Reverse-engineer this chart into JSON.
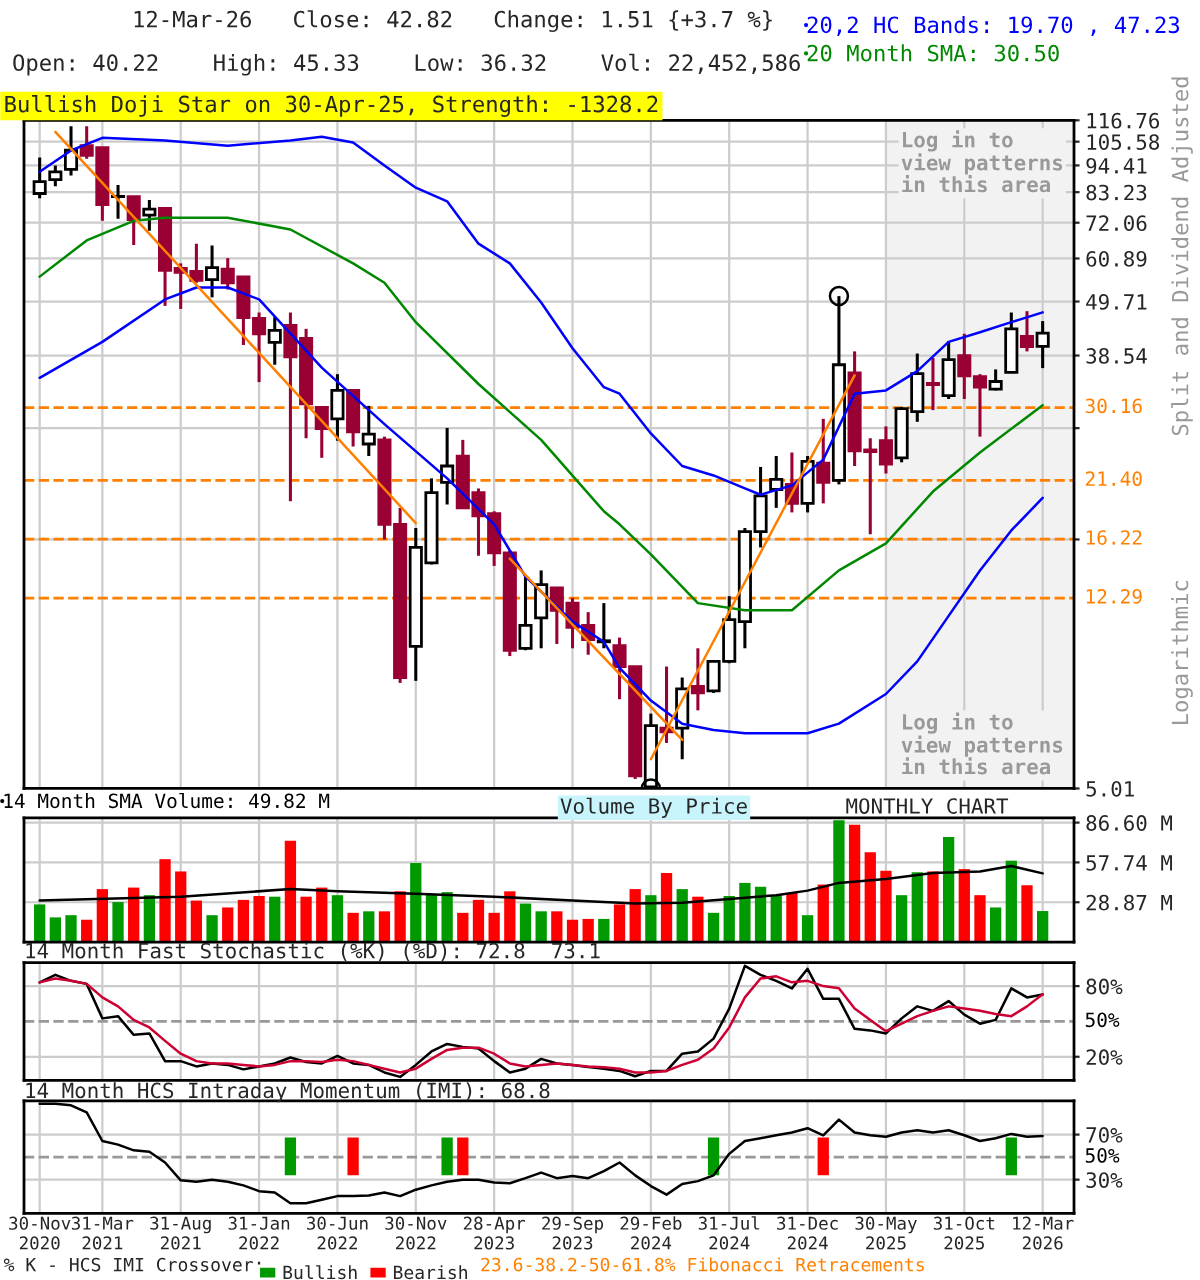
{
  "chart_data": [
    {
      "type": "candlestick",
      "title": "12-Mar-26   Close: 42.82   Change: 1.51 {+3.7 %}",
      "subtitle": "Open: 40.22    High: 45.33    Low: 36.32    Vol: 22,452,586",
      "x": [
        "2020-11",
        "2020-12",
        "2021-01",
        "2021-02",
        "2021-03",
        "2021-04",
        "2021-05",
        "2021-06",
        "2021-07",
        "2021-08",
        "2021-09",
        "2021-10",
        "2021-11",
        "2021-12",
        "2022-01",
        "2022-02",
        "2022-03",
        "2022-04",
        "2022-05",
        "2022-06",
        "2022-07",
        "2022-08",
        "2022-09",
        "2022-10",
        "2022-11",
        "2022-12",
        "2023-01",
        "2023-02",
        "2023-03",
        "2023-04",
        "2023-05",
        "2023-06",
        "2023-07",
        "2023-08",
        "2023-09",
        "2023-10",
        "2023-11",
        "2023-12",
        "2024-01",
        "2024-02",
        "2024-03",
        "2024-04",
        "2024-05",
        "2024-06",
        "2024-07",
        "2024-08",
        "2024-09",
        "2024-10",
        "2024-11",
        "2024-12",
        "2025-01",
        "2025-02",
        "2025-03",
        "2025-04",
        "2025-05",
        "2025-06",
        "2025-07",
        "2025-08",
        "2025-09",
        "2025-10",
        "2025-11",
        "2025-12",
        "2026-01",
        "2026-02",
        "2026-03"
      ],
      "ohlc": [
        [
          82.7,
          98.0,
          80.9,
          87.5
        ],
        [
          88.3,
          94.4,
          85.6,
          91.6
        ],
        [
          92.7,
          113.6,
          90.0,
          101.4
        ],
        [
          103.6,
          113.6,
          97.4,
          99.0
        ],
        [
          102.6,
          102.6,
          72.7,
          78.5
        ],
        [
          81.5,
          86.1,
          73.4,
          81.6
        ],
        [
          81.5,
          81.5,
          64.9,
          73.1
        ],
        [
          74.7,
          80.2,
          69.4,
          76.8
        ],
        [
          77.1,
          77.5,
          48.7,
          57.6
        ],
        [
          58.1,
          59.5,
          48.0,
          57.0
        ],
        [
          57.3,
          65.3,
          54.3,
          54.9
        ],
        [
          55.1,
          64.7,
          50.7,
          58.3
        ],
        [
          57.9,
          61.0,
          52.6,
          54.3
        ],
        [
          55.8,
          55.8,
          40.5,
          46.1
        ],
        [
          45.9,
          47.2,
          34.0,
          42.7
        ],
        [
          41.0,
          46.2,
          36.9,
          43.4
        ],
        [
          44.4,
          47.2,
          19.4,
          38.3
        ],
        [
          41.8,
          43.7,
          26.1,
          30.7
        ],
        [
          30.2,
          30.2,
          23.8,
          27.3
        ],
        [
          28.6,
          35.3,
          25.8,
          32.7
        ],
        [
          32.7,
          32.7,
          25.1,
          26.9
        ],
        [
          25.4,
          30.4,
          24.0,
          26.6
        ],
        [
          25.9,
          26.3,
          16.2,
          17.4
        ],
        [
          17.4,
          18.8,
          8.24,
          8.45
        ],
        [
          9.79,
          17.1,
          8.32,
          15.6
        ],
        [
          14.5,
          21.6,
          14.4,
          20.2
        ],
        [
          21.2,
          27.4,
          19.1,
          22.9
        ],
        [
          24.0,
          25.9,
          18.8,
          18.8
        ],
        [
          20.2,
          20.6,
          15.0,
          18.1
        ],
        [
          18.3,
          18.5,
          14.3,
          15.2
        ],
        [
          15.2,
          15.4,
          9.35,
          9.61
        ],
        [
          9.7,
          13.6,
          9.61,
          10.8
        ],
        [
          11.2,
          14.0,
          9.7,
          13.1
        ],
        [
          12.9,
          12.9,
          9.9,
          11.6
        ],
        [
          12.0,
          12.3,
          9.7,
          10.7
        ],
        [
          10.8,
          11.5,
          9.41,
          10.1
        ],
        [
          10.0,
          12.0,
          9.7,
          10.05
        ],
        [
          9.82,
          10.2,
          7.63,
          8.9
        ],
        [
          8.9,
          8.9,
          5.24,
          5.32
        ],
        [
          5.05,
          7.13,
          5.01,
          6.74
        ],
        [
          6.66,
          8.9,
          6.21,
          6.54
        ],
        [
          6.66,
          8.45,
          5.75,
          8.01
        ],
        [
          8.11,
          9.7,
          7.24,
          7.86
        ],
        [
          7.94,
          9.17,
          7.86,
          9.12
        ],
        [
          9.12,
          12.4,
          9.04,
          11.1
        ],
        [
          11.0,
          17.1,
          9.7,
          16.8
        ],
        [
          16.8,
          22.8,
          15.6,
          19.9
        ],
        [
          20.5,
          24.0,
          18.8,
          21.5
        ],
        [
          21.0,
          24.4,
          18.4,
          19.2
        ],
        [
          19.2,
          24.0,
          18.4,
          23.4
        ],
        [
          23.2,
          28.6,
          19.2,
          21.2
        ],
        [
          21.4,
          51.0,
          21.0,
          36.9
        ],
        [
          35.5,
          39.3,
          22.9,
          24.6
        ],
        [
          24.7,
          26.1,
          16.6,
          24.5
        ],
        [
          25.8,
          27.6,
          22.1,
          23.1
        ],
        [
          23.8,
          30.2,
          23.3,
          30.0
        ],
        [
          29.6,
          38.9,
          28.2,
          35.4
        ],
        [
          33.8,
          38.1,
          29.8,
          33.6
        ],
        [
          31.9,
          41.2,
          31.4,
          37.8
        ],
        [
          38.5,
          42.7,
          31.4,
          35.0
        ],
        [
          34.9,
          35.3,
          26.3,
          33.2
        ],
        [
          32.9,
          36.1,
          32.7,
          34.1
        ],
        [
          35.6,
          47.2,
          35.5,
          43.7
        ],
        [
          42.2,
          47.5,
          39.3,
          40.2
        ],
        [
          40.22,
          45.33,
          36.32,
          42.82
        ]
      ],
      "colors": [
        "#ffffff",
        "#ffffff",
        "#ffffff",
        "#990033",
        "#990033",
        "#ffffff",
        "#990033",
        "#ffffff",
        "#990033",
        "#990033",
        "#990033",
        "#ffffff",
        "#990033",
        "#990033",
        "#990033",
        "#ffffff",
        "#990033",
        "#990033",
        "#990033",
        "#ffffff",
        "#990033",
        "#ffffff",
        "#990033",
        "#990033",
        "#ffffff",
        "#ffffff",
        "#ffffff",
        "#990033",
        "#990033",
        "#990033",
        "#990033",
        "#ffffff",
        "#ffffff",
        "#990033",
        "#990033",
        "#990033",
        "#ffffff",
        "#990033",
        "#990033",
        "#ffffff",
        "#990033",
        "#ffffff",
        "#990033",
        "#ffffff",
        "#ffffff",
        "#ffffff",
        "#ffffff",
        "#ffffff",
        "#990033",
        "#ffffff",
        "#990033",
        "#ffffff",
        "#990033",
        "#990033",
        "#990033",
        "#ffffff",
        "#ffffff",
        "#990033",
        "#ffffff",
        "#990033",
        "#990033",
        "#ffffff",
        "#ffffff",
        "#990033",
        "#ffffff"
      ],
      "series": [
        {
          "type": "line",
          "name": "20,2 HC Bands: 19.70 , 47.23",
          "color": "#0000ff",
          "x": [
            "2020-11",
            "2021-01",
            "2021-03",
            "2021-07",
            "2021-11",
            "2022-03",
            "2022-05",
            "2022-07",
            "2022-09",
            "2022-11",
            "2023-01",
            "2023-03",
            "2023-05",
            "2023-07",
            "2023-09",
            "2023-11",
            "2023-12",
            "2024-02",
            "2024-04",
            "2024-06",
            "2024-08",
            "2024-09",
            "2024-11",
            "2025-01",
            "2025-03",
            "2025-05",
            "2025-07",
            "2025-09",
            "2025-11",
            "2026-01",
            "2026-03"
          ],
          "values": [
            91.6,
            101.3,
            107.5,
            106.2,
            103.6,
            106.2,
            108.1,
            105.2,
            94.4,
            85.0,
            79.7,
            65.3,
            59.5,
            49.5,
            39.9,
            33.2,
            32.2,
            26.7,
            22.9,
            21.9,
            20.6,
            20.0,
            20.9,
            23.6,
            32.2,
            32.7,
            35.8,
            41.1,
            43.0,
            45.1,
            47.23
          ]
        },
        {
          "type": "line",
          "color": "#0000ff",
          "x": [
            "2020-11",
            "2021-03",
            "2021-07",
            "2021-09",
            "2021-11",
            "2022-01",
            "2022-05",
            "2022-09",
            "2023-01",
            "2023-04",
            "2023-06",
            "2023-09",
            "2023-11",
            "2023-12",
            "2024-02",
            "2024-04",
            "2024-06",
            "2024-08",
            "2024-12",
            "2025-02",
            "2025-05",
            "2025-07",
            "2025-09",
            "2025-11",
            "2026-01",
            "2026-03"
          ],
          "values": [
            34.7,
            41.1,
            50.2,
            53.1,
            53.1,
            50.2,
            36.4,
            27.9,
            21.6,
            17.4,
            13.6,
            11.0,
            10.0,
            8.84,
            7.58,
            6.8,
            6.6,
            6.5,
            6.5,
            6.8,
            7.82,
            9.12,
            11.3,
            14.0,
            16.9,
            19.7
          ]
        },
        {
          "type": "line",
          "name": "20 Month SMA: 30.50",
          "color": "#008800",
          "x": [
            "2020-11",
            "2021-02",
            "2021-05",
            "2021-07",
            "2021-11",
            "2022-03",
            "2022-07",
            "2022-09",
            "2022-11",
            "2023-03",
            "2023-07",
            "2023-11",
            "2023-12",
            "2024-02",
            "2024-05",
            "2024-08",
            "2024-11",
            "2025-02",
            "2025-05",
            "2025-08",
            "2025-11",
            "2026-03"
          ],
          "values": [
            55.9,
            66.3,
            72.7,
            73.8,
            73.8,
            69.8,
            59.5,
            54.3,
            45.1,
            33.7,
            25.9,
            18.5,
            17.4,
            15.1,
            12.0,
            11.6,
            11.6,
            14.0,
            15.9,
            20.3,
            24.4,
            30.5
          ]
        },
        {
          "type": "line",
          "color": "#ff8000",
          "x": [
            "2020-12",
            "2022-11"
          ],
          "values": [
            110.6,
            17.5
          ]
        },
        {
          "type": "line",
          "color": "#ff8000",
          "x": [
            "2023-05",
            "2024-04"
          ],
          "values": [
            14.8,
            6.3
          ]
        },
        {
          "type": "line",
          "color": "#ff8000",
          "x": [
            "2024-02",
            "2025-03"
          ],
          "values": [
            5.75,
            35.1
          ]
        },
        {
          "type": "scatter",
          "color": "#000000",
          "marker": "circle",
          "x": [
            "2024-02",
            "2025-02"
          ],
          "values": [
            5.01,
            51.0
          ]
        }
      ],
      "log": true,
      "ylim": [
        5.01,
        116.76
      ],
      "yticks": [
        116.76,
        105.58,
        94.41,
        83.23,
        72.06,
        60.89,
        49.71,
        38.54,
        {
          "value": 27.37,
          "label": null
        },
        {
          "value": 16.2,
          "label": null
        },
        5.01
      ],
      "xlim": [
        "2020-10",
        "2026-05"
      ],
      "xticks": [
        {
          "value": "2020-11",
          "label": null
        },
        {
          "value": "2021-03",
          "label": null
        },
        {
          "value": "2021-08",
          "label": null
        },
        {
          "value": "2022-01",
          "label": null
        },
        {
          "value": "2022-06",
          "label": null
        },
        {
          "value": "2022-11",
          "label": null
        },
        {
          "value": "2023-04",
          "label": null
        },
        {
          "value": "2023-09",
          "label": null
        },
        {
          "value": "2024-02",
          "label": null
        },
        {
          "value": "2024-07",
          "label": null
        },
        {
          "value": "2024-12",
          "label": null
        },
        {
          "value": "2025-05",
          "label": null
        },
        {
          "value": "2025-10",
          "label": null
        },
        {
          "value": "2026-03",
          "label": null
        }
      ],
      "tick_labels": "y",
      "grid": true,
      "legend": "top right",
      "ref_lines": [
        {
          "axis": "y",
          "value": 30.16,
          "label": "30.16",
          "color": "#ff8000",
          "line_style": "dashed"
        },
        {
          "axis": "y",
          "value": 21.4,
          "label": "21.40",
          "color": "#ff8000",
          "line_style": "dashed"
        },
        {
          "axis": "y",
          "value": 16.22,
          "label": "16.22",
          "color": "#ff8000",
          "line_style": "dashed"
        },
        {
          "axis": "y",
          "value": 12.29,
          "label": "12.29",
          "color": "#ff8000",
          "line_style": "dashed"
        }
      ],
      "bands": [
        {
          "axis": "x",
          "from": "2025-05",
          "to": "2026-05",
          "color": "#f2f2f2"
        }
      ],
      "annotations": [
        "Bullish Doji Star on 30-Apr-25, Strength: -1328.2",
        "Log in to\nview patterns\nin this area",
        "Log in to\nview patterns\nin this area",
        "Split and Dividend Adjusted",
        "Logarithmic",
        "23.6-38.2-50-61.8% Fibonacci Retracements"
      ]
    },
    {
      "type": "bar",
      "x": [
        "2020-11",
        "2020-12",
        "2021-01",
        "2021-02",
        "2021-03",
        "2021-04",
        "2021-05",
        "2021-06",
        "2021-07",
        "2021-08",
        "2021-09",
        "2021-10",
        "2021-11",
        "2021-12",
        "2022-01",
        "2022-02",
        "2022-03",
        "2022-04",
        "2022-05",
        "2022-06",
        "2022-07",
        "2022-08",
        "2022-09",
        "2022-10",
        "2022-11",
        "2022-12",
        "2023-01",
        "2023-02",
        "2023-03",
        "2023-04",
        "2023-05",
        "2023-06",
        "2023-07",
        "2023-08",
        "2023-09",
        "2023-10",
        "2023-11",
        "2023-12",
        "2024-01",
        "2024-02",
        "2024-03",
        "2024-04",
        "2024-05",
        "2024-06",
        "2024-07",
        "2024-08",
        "2024-09",
        "2024-10",
        "2024-11",
        "2024-12",
        "2025-01",
        "2025-02",
        "2025-03",
        "2025-04",
        "2025-05",
        "2025-06",
        "2025-07",
        "2025-08",
        "2025-09",
        "2025-10",
        "2025-11",
        "2025-12",
        "2026-01",
        "2026-02",
        "2026-03"
      ],
      "series": [
        {
          "type": "bar",
          "values": [
            27.3,
            17.9,
            19.5,
            16.2,
            38.4,
            29.0,
            39.5,
            34.0,
            60.1,
            51.2,
            30.1,
            19.5,
            25.1,
            30.6,
            33.4,
            32.9,
            73.4,
            32.9,
            39.5,
            34.0,
            21.2,
            22.3,
            22.3,
            36.8,
            57.3,
            34.5,
            36.2,
            21.2,
            30.6,
            21.2,
            36.8,
            27.9,
            22.3,
            22.3,
            16.2,
            16.8,
            16.8,
            27.3,
            38.4,
            34.0,
            50.1,
            38.4,
            32.9,
            21.2,
            33.4,
            42.9,
            40.1,
            34.0,
            35.6,
            19.5,
            41.7,
            88.4,
            85.1,
            65.1,
            51.7,
            34.0,
            50.6,
            51.2,
            76.2,
            52.9,
            34.0,
            25.1,
            59.0,
            41.2,
            22.5
          ],
          "colors": [
            "#009900",
            "#009900",
            "#009900",
            "#ff0000",
            "#ff0000",
            "#009900",
            "#ff0000",
            "#009900",
            "#ff0000",
            "#ff0000",
            "#ff0000",
            "#009900",
            "#ff0000",
            "#ff0000",
            "#ff0000",
            "#009900",
            "#ff0000",
            "#ff0000",
            "#ff0000",
            "#009900",
            "#ff0000",
            "#009900",
            "#ff0000",
            "#ff0000",
            "#009900",
            "#009900",
            "#009900",
            "#ff0000",
            "#ff0000",
            "#ff0000",
            "#ff0000",
            "#009900",
            "#009900",
            "#ff0000",
            "#ff0000",
            "#ff0000",
            "#009900",
            "#ff0000",
            "#ff0000",
            "#009900",
            "#ff0000",
            "#009900",
            "#ff0000",
            "#009900",
            "#009900",
            "#009900",
            "#009900",
            "#009900",
            "#ff0000",
            "#009900",
            "#ff0000",
            "#009900",
            "#ff0000",
            "#ff0000",
            "#ff0000",
            "#009900",
            "#009900",
            "#ff0000",
            "#009900",
            "#ff0000",
            "#ff0000",
            "#009900",
            "#009900",
            "#ff0000",
            "#009900"
          ]
        },
        {
          "type": "line",
          "name": "14 Month SMA Volume: 49.82 M",
          "color": "#000000",
          "x": [
            "2020-11",
            "2021-08",
            "2022-03",
            "2022-06",
            "2022-11",
            "2023-04",
            "2023-09",
            "2024-01",
            "2024-04",
            "2024-10",
            "2024-12",
            "2025-02",
            "2025-05",
            "2025-08",
            "2025-11",
            "2026-01",
            "2026-03"
          ],
          "values": [
            30.1,
            32.9,
            38.4,
            36.8,
            35.1,
            32.9,
            30.1,
            27.9,
            28.5,
            34.0,
            37.3,
            42.9,
            45.8,
            50.1,
            51.2,
            55.1,
            49.82
          ]
        }
      ],
      "ylim": [
        0,
        90
      ],
      "yticks": [
        {
          "value": 28.87,
          "label": "28.87 M"
        },
        {
          "value": 57.74,
          "label": "57.74 M"
        },
        {
          "value": 86.6,
          "label": "86.60 M"
        }
      ],
      "xlim": [
        "2020-10",
        "2026-05"
      ],
      "xticks": [
        {
          "value": "2020-11",
          "label": null
        },
        {
          "value": "2021-03",
          "label": null
        },
        {
          "value": "2021-08",
          "label": null
        },
        {
          "value": "2022-01",
          "label": null
        },
        {
          "value": "2022-06",
          "label": null
        },
        {
          "value": "2022-11",
          "label": null
        },
        {
          "value": "2023-04",
          "label": null
        },
        {
          "value": "2023-09",
          "label": null
        },
        {
          "value": "2024-02",
          "label": null
        },
        {
          "value": "2024-07",
          "label": null
        },
        {
          "value": "2024-12",
          "label": null
        },
        {
          "value": "2025-05",
          "label": null
        },
        {
          "value": "2025-10",
          "label": null
        },
        {
          "value": "2026-03",
          "label": null
        }
      ],
      "tick_labels": "y",
      "grid": true,
      "legend": "top left",
      "annotations": [
        "Volume By Price",
        "MONTHLY CHART"
      ]
    },
    {
      "type": "line",
      "title": "14 Month Fast Stochastic (%K) (%D): 72.8  73.1",
      "x": [
        "2020-11",
        "2020-12",
        "2021-01",
        "2021-02",
        "2021-03",
        "2021-04",
        "2021-05",
        "2021-06",
        "2021-07",
        "2021-08",
        "2021-09",
        "2021-10",
        "2021-11",
        "2021-12",
        "2022-01",
        "2022-02",
        "2022-03",
        "2022-04",
        "2022-05",
        "2022-06",
        "2022-07",
        "2022-08",
        "2022-09",
        "2022-10",
        "2022-11",
        "2022-12",
        "2023-01",
        "2023-02",
        "2023-03",
        "2023-04",
        "2023-05",
        "2023-06",
        "2023-07",
        "2023-08",
        "2023-09",
        "2023-10",
        "2023-11",
        "2023-12",
        "2024-01",
        "2024-02",
        "2024-03",
        "2024-04",
        "2024-05",
        "2024-06",
        "2024-07",
        "2024-08",
        "2024-09",
        "2024-10",
        "2024-11",
        "2024-12",
        "2025-01",
        "2025-02",
        "2025-03",
        "2025-04",
        "2025-05",
        "2025-06",
        "2025-07",
        "2025-08",
        "2025-09",
        "2025-10",
        "2025-11",
        "2025-12",
        "2026-01",
        "2026-02",
        "2026-03"
      ],
      "series": [
        {
          "type": "line",
          "color": "#000000",
          "values": [
            83.2,
            89.6,
            84.5,
            81.9,
            52.6,
            54.5,
            38.6,
            39.8,
            16.3,
            16.3,
            11.8,
            14.3,
            13.1,
            9.3,
            11.8,
            14.3,
            19.4,
            15.6,
            14.3,
            20.7,
            14.3,
            13.1,
            6.7,
            2.9,
            13.1,
            24.5,
            30.9,
            28.4,
            27.1,
            16.3,
            6.7,
            9.9,
            18.2,
            14.3,
            13.1,
            11.2,
            9.9,
            8.0,
            3.5,
            8.0,
            8.0,
            22.6,
            24.5,
            35.4,
            60.9,
            97.2,
            89.6,
            84.5,
            78.1,
            94.7,
            69.2,
            69.2,
            43.7,
            42.4,
            39.8,
            52.6,
            62.8,
            59.0,
            67.3,
            55.8,
            48.1,
            51.3,
            78.1,
            70.4,
            72.8
          ]
        },
        {
          "type": "line",
          "color": "#cc0033",
          "values": [
            83.2,
            86.4,
            84.5,
            81.9,
            70.4,
            62.8,
            51.3,
            44.9,
            33.5,
            22.6,
            16.3,
            14.3,
            14.3,
            13.1,
            11.8,
            13.1,
            16.3,
            16.3,
            15.6,
            17.5,
            16.3,
            13.1,
            9.9,
            6.7,
            9.9,
            18.2,
            25.8,
            27.7,
            27.7,
            22.6,
            14.3,
            11.8,
            13.1,
            14.3,
            13.1,
            11.8,
            11.2,
            9.9,
            6.7,
            6.7,
            8.0,
            13.1,
            17.5,
            27.1,
            44.9,
            70.4,
            86.4,
            88.3,
            83.2,
            84.5,
            80.0,
            78.1,
            60.9,
            51.3,
            41.7,
            48.1,
            54.5,
            59.0,
            62.8,
            60.9,
            59.0,
            56.4,
            54.5,
            62.8,
            73.1
          ]
        }
      ],
      "ylim": [
        0,
        100
      ],
      "yticks": [
        {
          "value": 20,
          "label": "20%"
        },
        {
          "value": 80,
          "label": "80%"
        }
      ],
      "xlim": [
        "2020-10",
        "2026-05"
      ],
      "xticks": [
        {
          "value": "2020-11",
          "label": null
        },
        {
          "value": "2021-03",
          "label": null
        },
        {
          "value": "2021-08",
          "label": null
        },
        {
          "value": "2022-01",
          "label": null
        },
        {
          "value": "2022-06",
          "label": null
        },
        {
          "value": "2022-11",
          "label": null
        },
        {
          "value": "2023-04",
          "label": null
        },
        {
          "value": "2023-09",
          "label": null
        },
        {
          "value": "2024-02",
          "label": null
        },
        {
          "value": "2024-07",
          "label": null
        },
        {
          "value": "2024-12",
          "label": null
        },
        {
          "value": "2025-05",
          "label": null
        },
        {
          "value": "2025-10",
          "label": null
        },
        {
          "value": "2026-03",
          "label": null
        }
      ],
      "tick_labels": "y",
      "grid": true,
      "ref_lines": [
        {
          "axis": "y",
          "value": 50,
          "label": "50%",
          "color": "#999999",
          "line_style": "dashed"
        }
      ]
    },
    {
      "type": "line",
      "title": "14 Month HCS Intraday Momentum (IMI): 68.8",
      "x": [
        "2020-11",
        "2020-12",
        "2021-01",
        "2021-02",
        "2021-03",
        "2021-04",
        "2021-05",
        "2021-06",
        "2021-07",
        "2021-08",
        "2021-09",
        "2021-10",
        "2021-11",
        "2021-12",
        "2022-01",
        "2022-02",
        "2022-03",
        "2022-04",
        "2022-05",
        "2022-06",
        "2022-07",
        "2022-08",
        "2022-09",
        "2022-10",
        "2022-11",
        "2022-12",
        "2023-01",
        "2023-02",
        "2023-03",
        "2023-04",
        "2023-05",
        "2023-06",
        "2023-07",
        "2023-08",
        "2023-09",
        "2023-10",
        "2023-11",
        "2023-12",
        "2024-01",
        "2024-02",
        "2024-03",
        "2024-04",
        "2024-05",
        "2024-06",
        "2024-07",
        "2024-08",
        "2024-09",
        "2024-10",
        "2024-11",
        "2024-12",
        "2025-01",
        "2025-02",
        "2025-03",
        "2025-04",
        "2025-05",
        "2025-06",
        "2025-07",
        "2025-08",
        "2025-09",
        "2025-10",
        "2025-11",
        "2025-12",
        "2026-01",
        "2026-02",
        "2026-03"
      ],
      "series": [
        {
          "type": "line",
          "color": "#000000",
          "values": [
            97.3,
            97.3,
            96.0,
            89.7,
            64.3,
            61.1,
            56.0,
            54.8,
            45.2,
            29.4,
            28.1,
            30.0,
            28.1,
            24.9,
            19.8,
            18.6,
            9.0,
            9.0,
            12.2,
            15.4,
            15.4,
            16.0,
            18.6,
            15.4,
            21.1,
            24.9,
            28.1,
            30.0,
            30.0,
            27.5,
            26.8,
            31.3,
            36.3,
            31.3,
            33.2,
            31.3,
            37.6,
            45.2,
            33.8,
            24.3,
            16.7,
            26.2,
            28.7,
            33.8,
            52.9,
            64.3,
            66.8,
            69.4,
            71.9,
            75.7,
            69.4,
            83.3,
            71.9,
            69.4,
            68.1,
            71.9,
            73.8,
            71.9,
            73.8,
            69.4,
            64.3,
            66.8,
            70.6,
            68.1,
            68.8
          ]
        },
        {
          "type": "bar",
          "name": "Bullish",
          "color": "#009900",
          "x": [
            "2022-03",
            "2023-01",
            "2024-06",
            "2026-01"
          ],
          "values": [
            33.7,
            33.7,
            33.7,
            33.7
          ],
          "base": [
            33.8,
            33.8,
            33.8,
            33.8
          ]
        },
        {
          "type": "bar",
          "name": "Bearish",
          "color": "#ff0000",
          "x": [
            "2022-07",
            "2023-02",
            "2025-01"
          ],
          "values": [
            33.7,
            33.7,
            33.7
          ],
          "base": [
            33.8,
            33.8,
            33.8
          ]
        }
      ],
      "ylim": [
        0,
        100
      ],
      "yticks": [
        {
          "value": 30,
          "label": "30%"
        },
        {
          "value": 70,
          "label": "70%"
        }
      ],
      "xlim": [
        "2020-10",
        "2026-05"
      ],
      "xticks": [
        {
          "value": "2020-11",
          "label": "30-Nov\n2020"
        },
        {
          "value": "2021-03",
          "label": "31-Mar\n2021"
        },
        {
          "value": "2021-08",
          "label": "31-Aug\n2021"
        },
        {
          "value": "2022-01",
          "label": "31-Jan\n2022"
        },
        {
          "value": "2022-06",
          "label": "30-Jun\n2022"
        },
        {
          "value": "2022-11",
          "label": "30-Nov\n2022"
        },
        {
          "value": "2023-04",
          "label": "28-Apr\n2023"
        },
        {
          "value": "2023-09",
          "label": "29-Sep\n2023"
        },
        {
          "value": "2024-02",
          "label": "29-Feb\n2024"
        },
        {
          "value": "2024-07",
          "label": "31-Jul\n2024"
        },
        {
          "value": "2024-12",
          "label": "31-Dec\n2024"
        },
        {
          "value": "2025-05",
          "label": "30-May\n2025"
        },
        {
          "value": "2025-10",
          "label": "31-Oct\n2025"
        },
        {
          "value": "2026-03",
          "label": "12-Mar\n2026"
        }
      ],
      "grid": true,
      "legend": "bottom",
      "legend_title": "% K - HCS IMI Crossover:",
      "ref_lines": [
        {
          "axis": "y",
          "value": 50,
          "label": "50%",
          "color": "#999999",
          "line_style": "dashed"
        }
      ]
    }
  ]
}
